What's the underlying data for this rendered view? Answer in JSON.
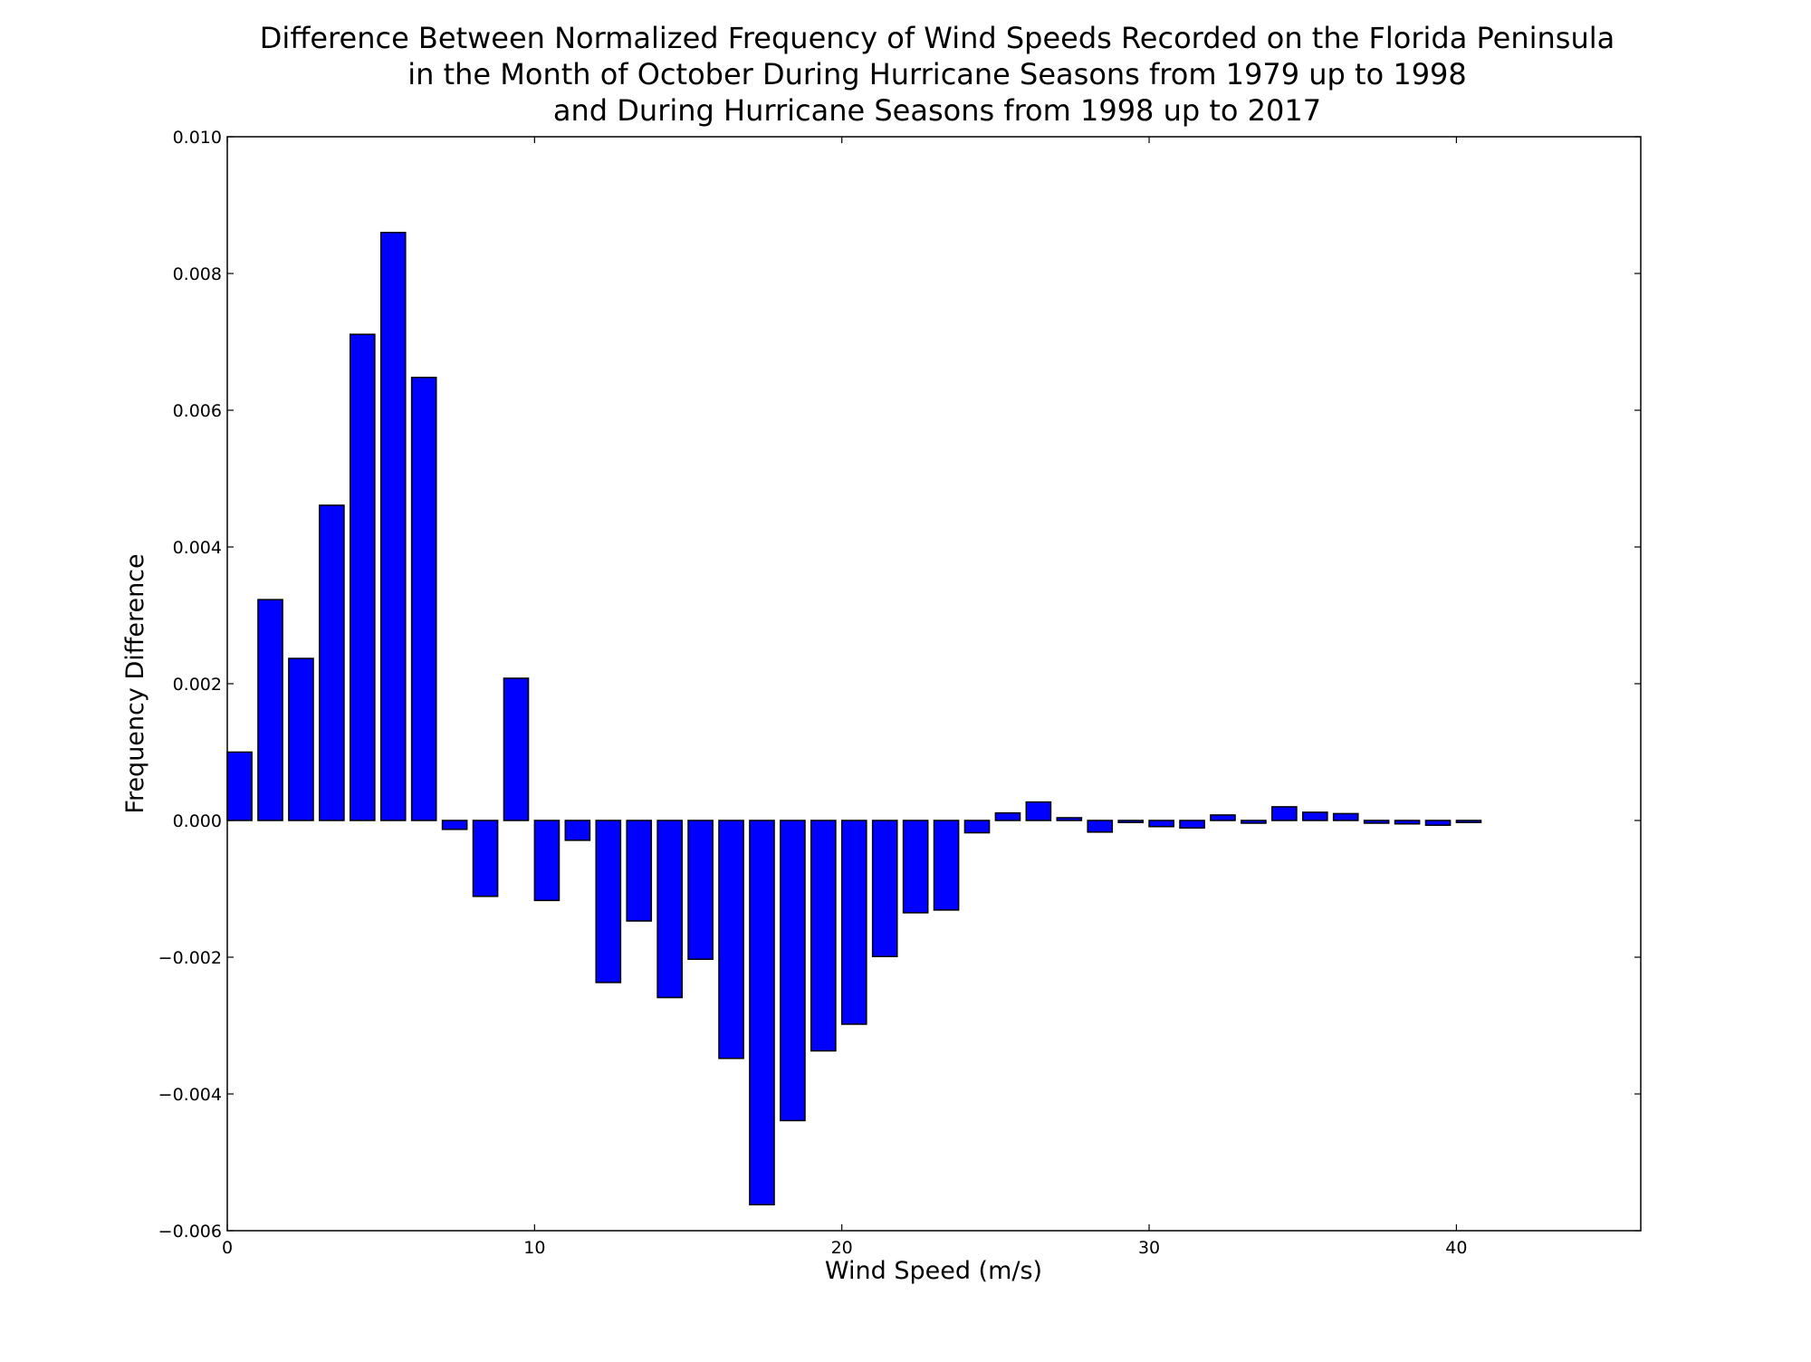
{
  "chart_data": {
    "type": "bar",
    "title_lines": [
      "Difference Between Normalized Frequency of Wind Speeds Recorded on the Florida Peninsula",
      "in the Month of October During Hurricane Seasons from 1979 up to 1998",
      "and During Hurricane Seasons from 1998 up to 2017"
    ],
    "xlabel": "Wind Speed (m/s)",
    "ylabel": "Frequency Difference",
    "xlim": [
      0,
      46
    ],
    "ylim": [
      -0.006,
      0.01
    ],
    "bar_width": 0.8,
    "bar_color": "#0000ff",
    "grid": false,
    "x_ticks": [
      {
        "value": 0,
        "label": "0"
      },
      {
        "value": 10,
        "label": "10"
      },
      {
        "value": 20,
        "label": "20"
      },
      {
        "value": 30,
        "label": "30"
      },
      {
        "value": 40,
        "label": "40"
      }
    ],
    "y_ticks": [
      {
        "value": 0.01,
        "label": "0.010"
      },
      {
        "value": 0.008,
        "label": "0.008"
      },
      {
        "value": 0.006,
        "label": "0.006"
      },
      {
        "value": 0.004,
        "label": "0.004"
      },
      {
        "value": 0.002,
        "label": "0.002"
      },
      {
        "value": 0.0,
        "label": "0.000"
      },
      {
        "value": -0.002,
        "label": "−0.002"
      },
      {
        "value": -0.004,
        "label": "−0.004"
      },
      {
        "value": -0.006,
        "label": "−0.006"
      }
    ],
    "x": [
      0,
      1,
      2,
      3,
      4,
      5,
      6,
      7,
      8,
      9,
      10,
      11,
      12,
      13,
      14,
      15,
      16,
      17,
      18,
      19,
      20,
      21,
      22,
      23,
      24,
      25,
      26,
      27,
      28,
      29,
      30,
      31,
      32,
      33,
      34,
      35,
      36,
      37,
      38,
      39,
      40,
      41,
      42,
      43,
      44
    ],
    "values": [
      0.001,
      0.00323,
      0.00237,
      0.00461,
      0.00711,
      0.0086,
      0.00648,
      -0.00013,
      -0.00111,
      0.00208,
      -0.00117,
      -0.00029,
      -0.00237,
      -0.00147,
      -0.00259,
      -0.00203,
      -0.00348,
      -0.00562,
      -0.00439,
      -0.00337,
      -0.00298,
      -0.00199,
      -0.00135,
      -0.00131,
      -0.00018,
      0.00011,
      0.00027,
      4e-05,
      -0.00017,
      -3e-05,
      -9e-05,
      -0.00011,
      8e-05,
      -4e-05,
      0.0002,
      0.00012,
      0.0001,
      -4e-05,
      -5e-05,
      -7e-05,
      -3e-05,
      0.0,
      0.0,
      0.0,
      0.0
    ]
  }
}
